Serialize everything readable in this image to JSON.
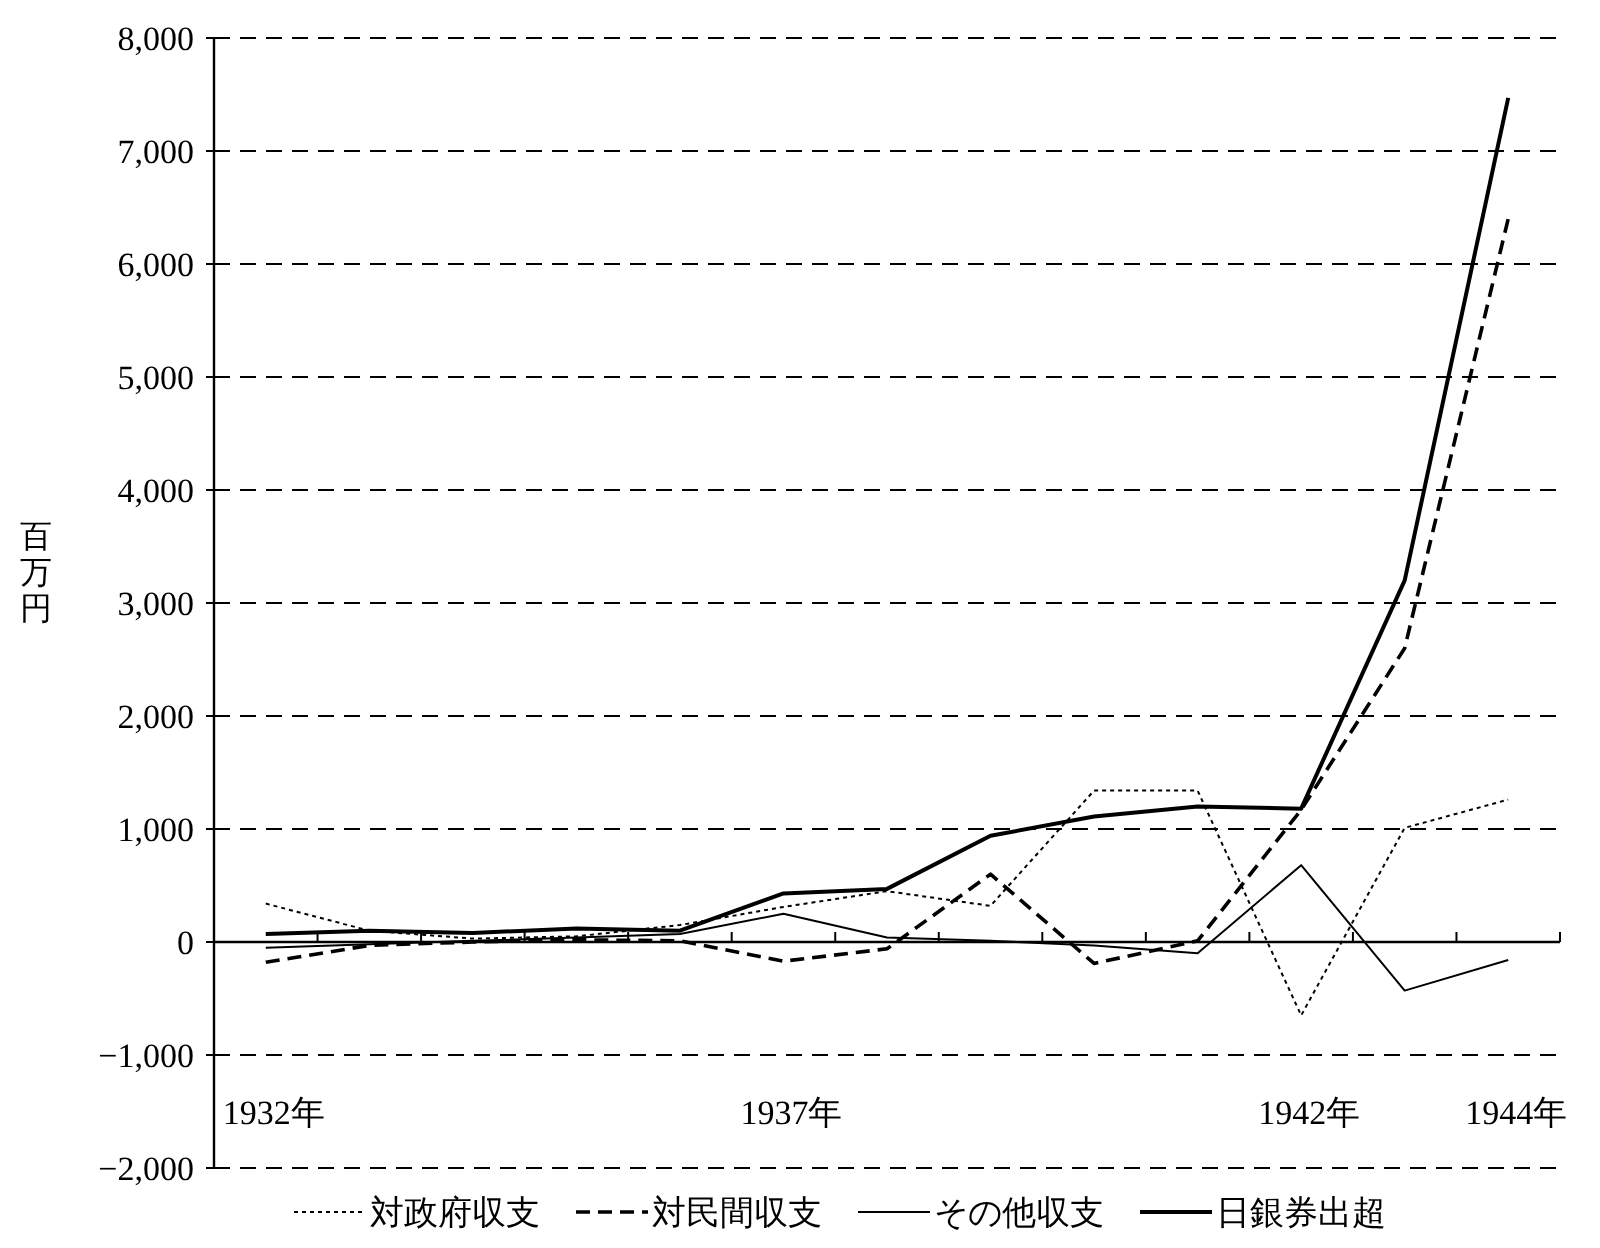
{
  "chart_data": {
    "type": "line",
    "ylabel": "百万円",
    "categories": [
      "1932年",
      null,
      null,
      null,
      null,
      "1937年",
      null,
      null,
      null,
      null,
      "1942年",
      null,
      "1944年"
    ],
    "series": [
      {
        "name": "対政府収支",
        "color": "#000000",
        "line_style": "dotted",
        "values": [
          340,
          100,
          30,
          50,
          150,
          310,
          450,
          320,
          1340,
          1340,
          -650,
          1010,
          1260
        ]
      },
      {
        "name": "対民間収支",
        "color": "#000000",
        "line_style": "dashed",
        "values": [
          -180,
          -30,
          0,
          20,
          10,
          -170,
          -60,
          600,
          -190,
          10,
          1170,
          2600,
          6400
        ]
      },
      {
        "name": "その他収支",
        "color": "#000000",
        "line_style": "solid",
        "values": [
          -50,
          -20,
          10,
          40,
          70,
          250,
          40,
          10,
          -30,
          -100,
          680,
          -430,
          -160
        ]
      },
      {
        "name": "日銀券出超",
        "color": "#000000",
        "line_style": "solid",
        "values": [
          70,
          100,
          80,
          120,
          100,
          430,
          470,
          940,
          1110,
          1200,
          1180,
          3200,
          7470
        ]
      }
    ],
    "ylim": [
      -2000,
      8000
    ],
    "yticks": [
      {
        "value": -2000,
        "label": "−2,000"
      },
      {
        "value": -1000,
        "label": "−1,000"
      },
      0,
      {
        "value": 1000,
        "label": "1,000"
      },
      {
        "value": 2000,
        "label": "2,000"
      },
      {
        "value": 3000,
        "label": "3,000"
      },
      {
        "value": 4000,
        "label": "4,000"
      },
      {
        "value": 5000,
        "label": "5,000"
      },
      {
        "value": 6000,
        "label": "6,000"
      },
      {
        "value": 7000,
        "label": "7,000"
      },
      {
        "value": 8000,
        "label": "8,000"
      }
    ],
    "grid": "y",
    "legend": "bottom",
    "marker": "none"
  }
}
